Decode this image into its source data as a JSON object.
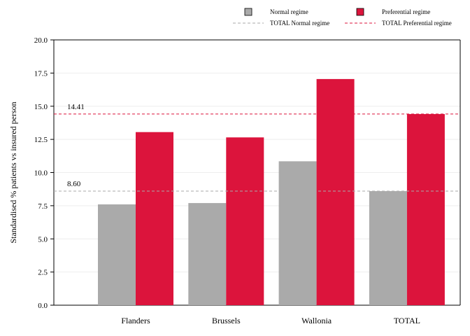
{
  "chart_data": {
    "type": "bar",
    "categories": [
      "Flanders",
      "Brussels",
      "Wallonia",
      "TOTAL"
    ],
    "series": [
      {
        "name": "Normal regime",
        "color": "#aaaaaa",
        "values": [
          7.6,
          7.7,
          10.85,
          8.6
        ]
      },
      {
        "name": "Preferential regime",
        "color": "#dc143c",
        "values": [
          13.05,
          12.65,
          17.05,
          14.41
        ]
      }
    ],
    "reference_lines": [
      {
        "name": "TOTAL Normal regime",
        "value": 8.6,
        "label": "8.60",
        "color": "#aaaaaa",
        "style": "dashed"
      },
      {
        "name": "TOTAL Preferential regime",
        "value": 14.41,
        "label": "14.41",
        "color": "#dc143c",
        "style": "dashed"
      }
    ],
    "ylabel": "Standardised % patients vs insured person",
    "xlabel": "",
    "title": "",
    "ylim": [
      0,
      20
    ],
    "yticks": [
      "0.0",
      "2.5",
      "5.0",
      "7.5",
      "10.0",
      "12.5",
      "15.0",
      "17.5",
      "20.0"
    ],
    "grid": true,
    "legend_position": "top"
  }
}
